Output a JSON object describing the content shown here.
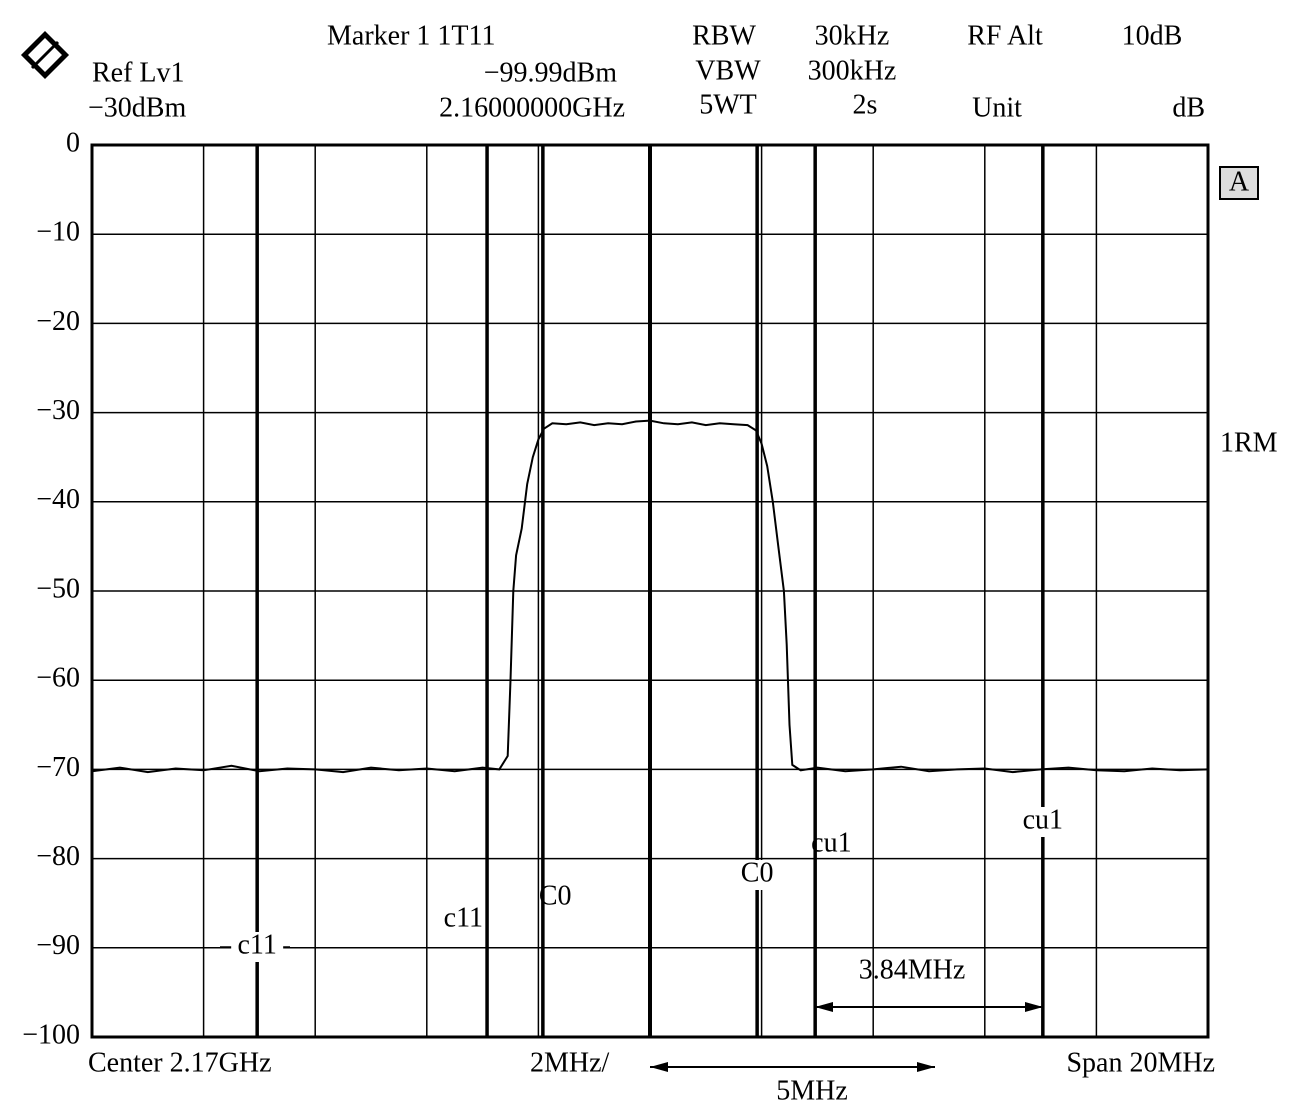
{
  "chart_data": {
    "type": "line",
    "header": {
      "ref_label": "Ref Lv1",
      "ref_level": "−30dBm",
      "marker_label": "Marker 1 1T11",
      "marker_level": "−99.99dBm",
      "marker_freq": "2.16000000GHz",
      "rbw_label": "RBW",
      "rbw": "30kHz",
      "vbw_label": "VBW",
      "vbw": "300kHz",
      "swt_label": "5WT",
      "swt": "2s",
      "rf_label": "RF Alt",
      "rf": "10dB",
      "unit_label": "Unit",
      "unit": "dB"
    },
    "screen_label": "A",
    "trace_label": "1RM",
    "footer": {
      "center": "Center 2.17GHz",
      "per_div": "2MHz/",
      "span": "Span 20MHz",
      "spacing": "5MHz"
    },
    "bandwidth_label": "3.84MHz",
    "xlim": [
      -10,
      10
    ],
    "xticks": [
      -10,
      -8,
      -6,
      -4,
      -2,
      0,
      2,
      4,
      6,
      8,
      10
    ],
    "ylim": [
      -100,
      0
    ],
    "yticks": [
      0,
      {
        "value": -10,
        "label": "−10"
      },
      {
        "value": -20,
        "label": "−20"
      },
      {
        "value": -30,
        "label": "−30"
      },
      {
        "value": -40,
        "label": "−40"
      },
      {
        "value": -50,
        "label": "−50"
      },
      {
        "value": -60,
        "label": "−60"
      },
      {
        "value": -70,
        "label": "−70"
      },
      {
        "value": -80,
        "label": "−80"
      },
      {
        "value": -90,
        "label": "−90"
      },
      {
        "value": -100,
        "label": "−100"
      }
    ],
    "grid": true,
    "color": "#000000",
    "channel_lines": [
      {
        "name": "c11",
        "x": -7.04
      },
      {
        "name": "c11",
        "x": -2.92
      },
      {
        "name": "C0",
        "x": -1.92
      },
      {
        "name": "C0",
        "x": 1.92
      },
      {
        "name": "cu1",
        "x": 2.96
      },
      {
        "name": "cu1",
        "x": 7.04
      }
    ],
    "x": [
      -10,
      -9.5,
      -9,
      -8.5,
      -8,
      -7.5,
      -7,
      -6.5,
      -6,
      -5.5,
      -5,
      -4.5,
      -4,
      -3.5,
      -3,
      -2.7,
      -2.55,
      -2.5,
      -2.45,
      -2.4,
      -2.3,
      -2.2,
      -2.1,
      -2.0,
      -1.9,
      -1.75,
      -1.5,
      -1.25,
      -1,
      -0.75,
      -0.5,
      -0.25,
      0,
      0.25,
      0.5,
      0.75,
      1,
      1.25,
      1.5,
      1.75,
      1.9,
      2.0,
      2.1,
      2.2,
      2.3,
      2.4,
      2.45,
      2.5,
      2.55,
      2.7,
      3,
      3.5,
      4,
      4.5,
      5,
      5.5,
      6,
      6.5,
      7,
      7.5,
      8,
      8.5,
      9,
      9.5,
      10
    ],
    "values": [
      -70.2,
      -69.8,
      -70.3,
      -69.9,
      -70.1,
      -69.6,
      -70.2,
      -69.9,
      -70.0,
      -70.3,
      -69.8,
      -70.1,
      -69.9,
      -70.2,
      -69.8,
      -70.0,
      -68.5,
      -60,
      -50,
      -46,
      -43,
      -38,
      -35,
      -33,
      -31.8,
      -31.2,
      -31.3,
      -31.1,
      -31.4,
      -31.2,
      -31.3,
      -31.0,
      -30.9,
      -31.2,
      -31.3,
      -31.1,
      -31.4,
      -31.2,
      -31.3,
      -31.4,
      -32,
      -33.5,
      -36,
      -40,
      -45,
      -50,
      -56,
      -65,
      -69.5,
      -70.1,
      -69.8,
      -70.2,
      -70.0,
      -69.7,
      -70.2,
      -70.0,
      -69.9,
      -70.3,
      -70.0,
      -69.8,
      -70.1,
      -70.2,
      -69.9,
      -70.1,
      -70.0
    ]
  }
}
